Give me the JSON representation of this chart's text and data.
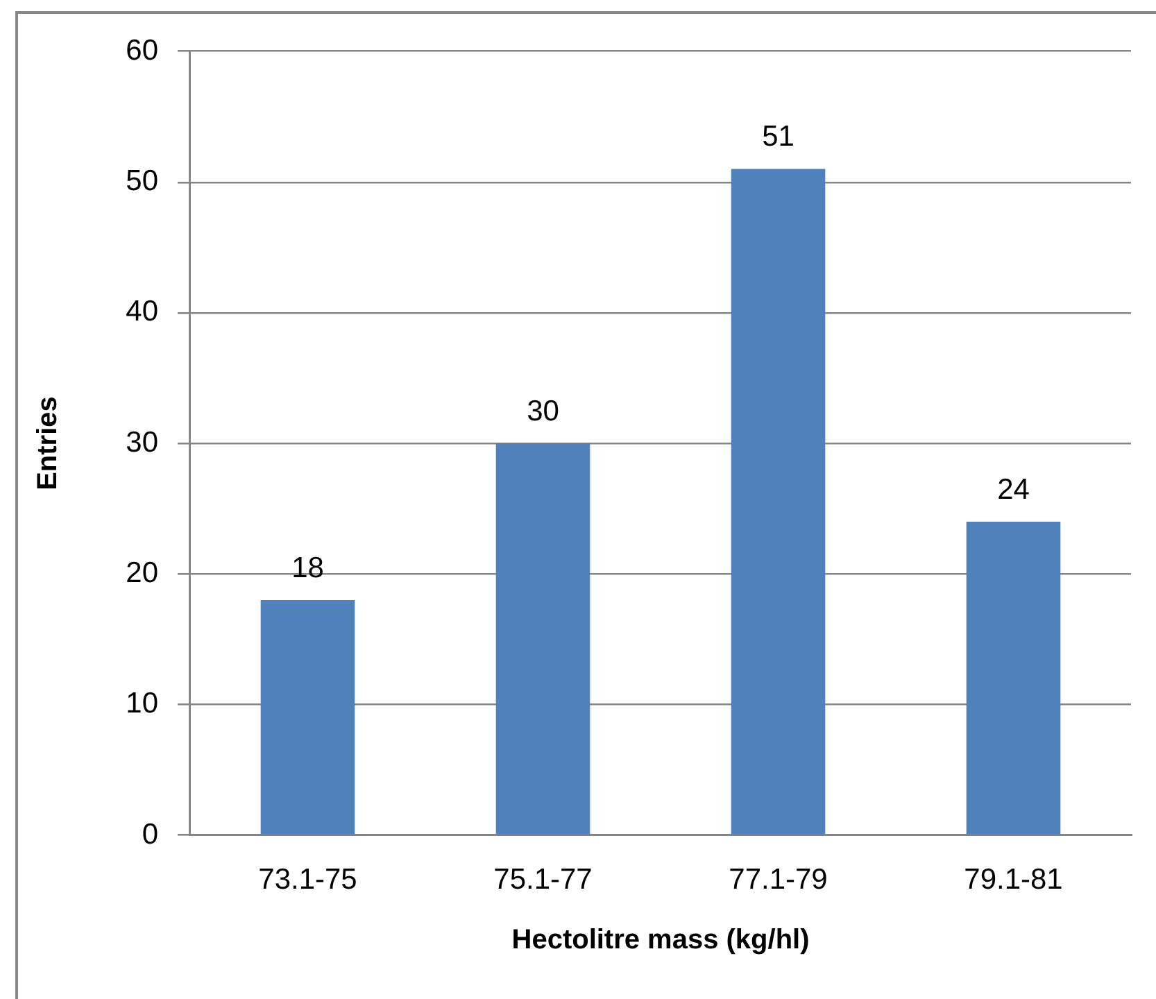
{
  "chart_data": {
    "type": "bar",
    "xlabel": "Hectolitre mass (kg/hl)",
    "ylabel": "Entries",
    "categories": [
      "73.1-75",
      "75.1-77",
      "77.1-79",
      "79.1-81"
    ],
    "values": [
      18,
      30,
      51,
      24
    ],
    "color": "#4f81bd",
    "ylim": [
      0,
      60
    ],
    "yticks": [
      0,
      10,
      20,
      30,
      40,
      50,
      60
    ],
    "grid": "y",
    "data_labels": true
  }
}
